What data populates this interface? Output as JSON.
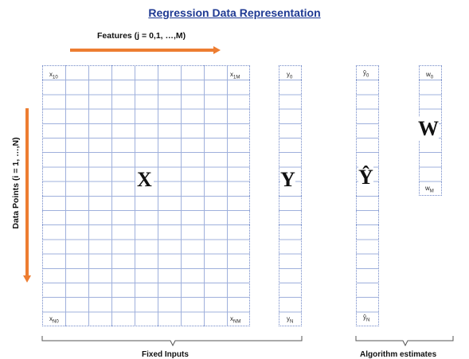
{
  "title": "Regression Data Representation",
  "features_label": "Features (j = 0,1, …,M)",
  "data_points_label": "Data Points (i = 1, …,N)",
  "matrix_X": {
    "symbol": "X",
    "top_left": "x",
    "top_left_sub": "10",
    "top_right": "x",
    "top_right_sub": "1M",
    "bottom_left": "x",
    "bottom_left_sub": "N0",
    "bottom_right": "x",
    "bottom_right_sub": "NM"
  },
  "vector_Y": {
    "symbol": "Y",
    "top": "y",
    "top_sub": "0",
    "bottom": "y",
    "bottom_sub": "N"
  },
  "vector_Yhat": {
    "symbol": "Ŷ",
    "top": "ŷ",
    "top_sub": "0",
    "bottom": "ŷ",
    "bottom_sub": "N"
  },
  "vector_W": {
    "symbol": "W",
    "top": "w",
    "top_sub": "0",
    "bottom": "w",
    "bottom_sub": "M"
  },
  "brace_left_label": "Fixed Inputs",
  "brace_right_label": "Algorithm estimates",
  "colors": {
    "title": "#1f3a93",
    "arrow": "#ed7d31",
    "grid": "#6f86c6"
  }
}
